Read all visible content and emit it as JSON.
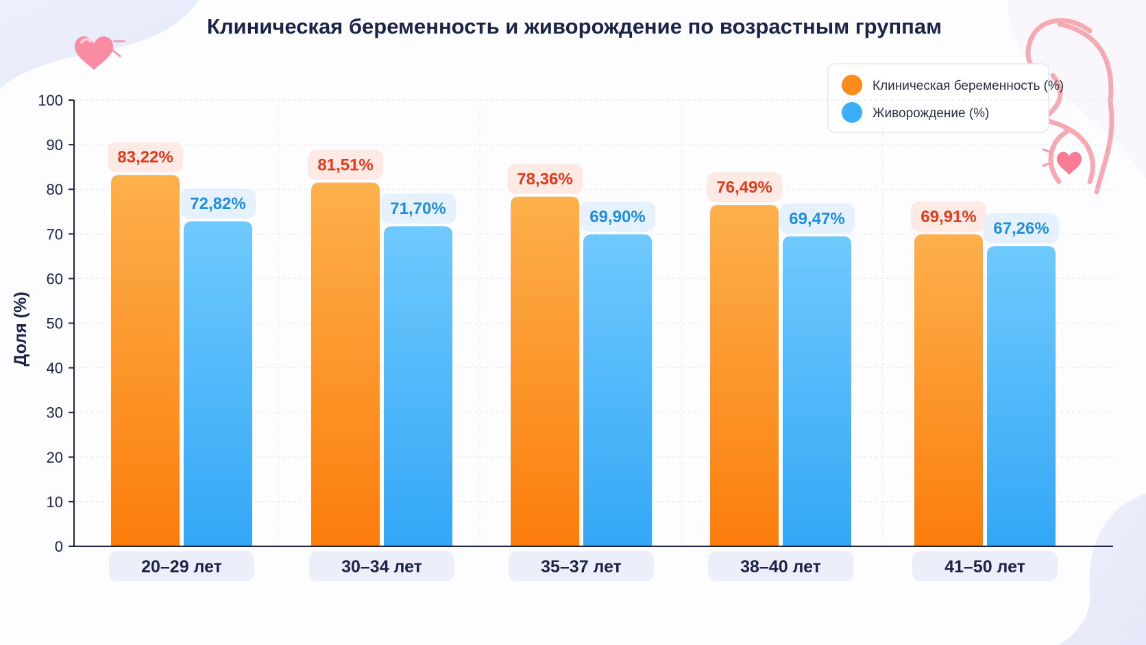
{
  "colors": {
    "series_1": "#fb8c1c",
    "series_2": "#3aaef8",
    "label_1": "#e23a1a",
    "label_2": "#1f8de0",
    "axis": "#1b2447"
  },
  "chart_data": {
    "type": "bar",
    "title": "Клиническая беременность и живорождение по возрастным группам",
    "ylabel": "Доля (%)",
    "xlabel": "",
    "ylim": [
      0,
      100
    ],
    "yticks": [
      0,
      10,
      20,
      30,
      40,
      50,
      60,
      70,
      80,
      90,
      100
    ],
    "grid": true,
    "legend_position": "top-right",
    "categories": [
      "20–29 лет",
      "30–34 лет",
      "35–37 лет",
      "38–40 лет",
      "41–50 лет"
    ],
    "series": [
      {
        "name": "Клиническая беременность (%)",
        "values": [
          83.22,
          81.51,
          78.36,
          76.49,
          69.91
        ],
        "labels": [
          "83,22%",
          "81,51%",
          "78,36%",
          "76,49%",
          "69,91%"
        ]
      },
      {
        "name": "Живорождение (%)",
        "values": [
          72.82,
          71.7,
          69.9,
          69.47,
          67.26
        ],
        "labels": [
          "72,82%",
          "71,70%",
          "69,90%",
          "69,47%",
          "67,26%"
        ]
      }
    ]
  }
}
